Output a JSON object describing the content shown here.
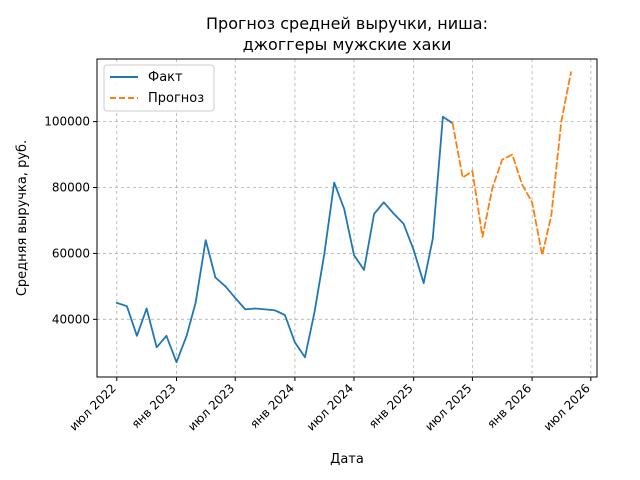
{
  "chart_data": {
    "type": "line",
    "title_lines": [
      "Прогноз средней выручки, ниша:",
      "джоггеры мужские хаки"
    ],
    "xlabel": "Дата",
    "ylabel": "Средняя выручка, руб.",
    "xlim": [
      "2022-05-01",
      "2026-07-20"
    ],
    "ylim": [
      22500,
      119000
    ],
    "x_ticks": [
      {
        "date": "2022-07-01",
        "label": "июл 2022"
      },
      {
        "date": "2023-01-01",
        "label": "янв 2023"
      },
      {
        "date": "2023-07-01",
        "label": "июл 2023"
      },
      {
        "date": "2024-01-01",
        "label": "янв 2024"
      },
      {
        "date": "2024-07-01",
        "label": "июл 2024"
      },
      {
        "date": "2025-01-01",
        "label": "янв 2025"
      },
      {
        "date": "2025-07-01",
        "label": "июл 2025"
      },
      {
        "date": "2026-01-01",
        "label": "янв 2026"
      },
      {
        "date": "2026-07-01",
        "label": "июл 2026"
      }
    ],
    "y_ticks": [
      {
        "value": 40000,
        "label": "40000"
      },
      {
        "value": 60000,
        "label": "60000"
      },
      {
        "value": 80000,
        "label": "80000"
      },
      {
        "value": 100000,
        "label": "100000"
      }
    ],
    "grid": true,
    "legend_position": "top-left",
    "series": [
      {
        "name": "Факт",
        "color": "#1f77b4",
        "style": "solid",
        "points": [
          [
            "2022-07-01",
            45000
          ],
          [
            "2022-08-01",
            44000
          ],
          [
            "2022-09-01",
            35000
          ],
          [
            "2022-10-01",
            43300
          ],
          [
            "2022-11-01",
            31500
          ],
          [
            "2022-12-01",
            35000
          ],
          [
            "2023-01-01",
            27000
          ],
          [
            "2023-02-01",
            35000
          ],
          [
            "2023-03-01",
            45000
          ],
          [
            "2023-04-01",
            64000
          ],
          [
            "2023-05-01",
            52700
          ],
          [
            "2023-06-01",
            50000
          ],
          [
            "2023-07-01",
            46500
          ],
          [
            "2023-08-01",
            43000
          ],
          [
            "2023-09-01",
            43300
          ],
          [
            "2023-10-01",
            43000
          ],
          [
            "2023-11-01",
            42700
          ],
          [
            "2023-12-01",
            41300
          ],
          [
            "2024-01-01",
            33000
          ],
          [
            "2024-02-01",
            28500
          ],
          [
            "2024-03-01",
            42000
          ],
          [
            "2024-04-01",
            60000
          ],
          [
            "2024-05-01",
            81500
          ],
          [
            "2024-06-01",
            73500
          ],
          [
            "2024-07-01",
            59500
          ],
          [
            "2024-08-01",
            55000
          ],
          [
            "2024-09-01",
            72000
          ],
          [
            "2024-10-01",
            75500
          ],
          [
            "2024-11-01",
            72000
          ],
          [
            "2024-12-01",
            69000
          ],
          [
            "2025-01-01",
            61000
          ],
          [
            "2025-02-01",
            51000
          ],
          [
            "2025-03-01",
            64500
          ],
          [
            "2025-04-01",
            101500
          ],
          [
            "2025-05-01",
            99500
          ]
        ]
      },
      {
        "name": "Прогноз",
        "color": "#ff7f0e",
        "style": "dashed",
        "points": [
          [
            "2025-05-01",
            99500
          ],
          [
            "2025-06-01",
            83000
          ],
          [
            "2025-07-01",
            85000
          ],
          [
            "2025-08-01",
            65000
          ],
          [
            "2025-09-01",
            80000
          ],
          [
            "2025-10-01",
            88500
          ],
          [
            "2025-11-01",
            90000
          ],
          [
            "2025-12-01",
            81000
          ],
          [
            "2026-01-01",
            75500
          ],
          [
            "2026-02-01",
            59500
          ],
          [
            "2026-03-01",
            71500
          ],
          [
            "2026-04-01",
            100000
          ],
          [
            "2026-05-01",
            115000
          ]
        ]
      }
    ]
  }
}
